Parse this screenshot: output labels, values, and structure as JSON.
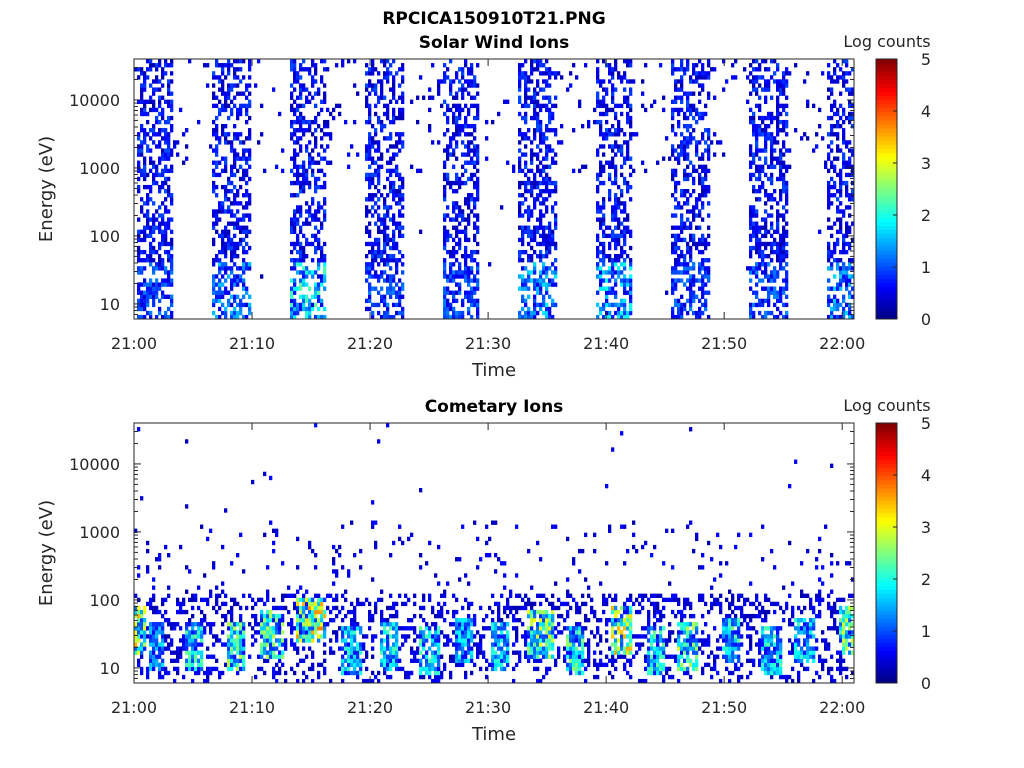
{
  "figure": {
    "title": "RPCICA150910T21.PNG"
  },
  "chart_data": [
    {
      "type": "heatmap",
      "title": "Solar Wind Ions",
      "xlabel": "Time",
      "ylabel": "Energy (eV)",
      "x_ticks": [
        "21:00",
        "21:10",
        "21:20",
        "21:30",
        "21:40",
        "21:50",
        "22:00"
      ],
      "x_range_minutes": [
        0,
        61
      ],
      "y_scale": "log",
      "y_ticks": [
        10,
        100,
        1000,
        10000
      ],
      "y_range": [
        6,
        40000
      ],
      "colorbar": {
        "label": "Log counts",
        "range": [
          0,
          5
        ],
        "ticks": [
          "0",
          "1",
          "2",
          "3",
          "4",
          "5"
        ],
        "colormap": "jet"
      },
      "bursts_minutes": [
        {
          "start": 0.2,
          "end": 3.4,
          "dense_above_eV": 150,
          "low_energy_peak": 0.9,
          "high_energy_peak": 0.8
        },
        {
          "start": 6.6,
          "end": 9.8,
          "dense_above_eV": 150,
          "low_energy_peak": 1.2,
          "high_energy_peak": 0.8
        },
        {
          "start": 13.1,
          "end": 16.3,
          "dense_above_eV": 150,
          "low_energy_peak": 2.0,
          "high_energy_peak": 0.8
        },
        {
          "start": 19.6,
          "end": 22.8,
          "dense_above_eV": 150,
          "low_energy_peak": 0.9,
          "high_energy_peak": 0.8
        },
        {
          "start": 26.1,
          "end": 29.2,
          "dense_above_eV": 150,
          "low_energy_peak": 0.9,
          "high_energy_peak": 0.8
        },
        {
          "start": 32.6,
          "end": 35.8,
          "dense_above_eV": 150,
          "low_energy_peak": 1.4,
          "high_energy_peak": 0.8
        },
        {
          "start": 39.1,
          "end": 42.3,
          "dense_above_eV": 150,
          "low_energy_peak": 1.6,
          "high_energy_peak": 0.8
        },
        {
          "start": 45.6,
          "end": 48.8,
          "dense_above_eV": 150,
          "low_energy_peak": 0.9,
          "high_energy_peak": 0.8
        },
        {
          "start": 52.1,
          "end": 55.3,
          "dense_above_eV": 150,
          "low_energy_peak": 0.9,
          "high_energy_peak": 0.8
        },
        {
          "start": 58.6,
          "end": 61.0,
          "dense_above_eV": 150,
          "low_energy_peak": 1.3,
          "high_energy_peak": 0.8
        }
      ]
    },
    {
      "type": "heatmap",
      "title": "Cometary Ions",
      "xlabel": "Time",
      "ylabel": "Energy (eV)",
      "x_ticks": [
        "21:00",
        "21:10",
        "21:20",
        "21:30",
        "21:40",
        "21:50",
        "22:00"
      ],
      "x_range_minutes": [
        0,
        61
      ],
      "y_scale": "log",
      "y_ticks": [
        10,
        100,
        1000,
        10000
      ],
      "y_range": [
        6,
        40000
      ],
      "colorbar": {
        "label": "Log counts",
        "range": [
          0,
          5
        ],
        "ticks": [
          "0",
          "1",
          "2",
          "3",
          "4",
          "5"
        ],
        "colormap": "jet"
      },
      "bursts_minutes": [
        {
          "start": 0.0,
          "end": 0.6,
          "peak_energy_eV": 35,
          "peak_log_counts": 3.0
        },
        {
          "start": 1.6,
          "end": 2.2,
          "peak_energy_eV": 20,
          "peak_log_counts": 1.2
        },
        {
          "start": 4.8,
          "end": 5.4,
          "peak_energy_eV": 20,
          "peak_log_counts": 1.8
        },
        {
          "start": 8.2,
          "end": 9.0,
          "peak_energy_eV": 20,
          "peak_log_counts": 2.2
        },
        {
          "start": 11.2,
          "end": 12.2,
          "peak_energy_eV": 30,
          "peak_log_counts": 2.2
        },
        {
          "start": 14.2,
          "end": 15.8,
          "peak_energy_eV": 50,
          "peak_log_counts": 3.2
        },
        {
          "start": 18.0,
          "end": 18.8,
          "peak_energy_eV": 18,
          "peak_log_counts": 1.6
        },
        {
          "start": 21.2,
          "end": 22.0,
          "peak_energy_eV": 20,
          "peak_log_counts": 1.7
        },
        {
          "start": 24.6,
          "end": 25.4,
          "peak_energy_eV": 18,
          "peak_log_counts": 1.9
        },
        {
          "start": 27.6,
          "end": 28.4,
          "peak_energy_eV": 25,
          "peak_log_counts": 1.4
        },
        {
          "start": 30.6,
          "end": 31.4,
          "peak_energy_eV": 20,
          "peak_log_counts": 1.5
        },
        {
          "start": 33.8,
          "end": 35.2,
          "peak_energy_eV": 30,
          "peak_log_counts": 2.6
        },
        {
          "start": 37.0,
          "end": 37.8,
          "peak_energy_eV": 18,
          "peak_log_counts": 2.0
        },
        {
          "start": 40.8,
          "end": 41.8,
          "peak_energy_eV": 35,
          "peak_log_counts": 3.0
        },
        {
          "start": 43.8,
          "end": 44.6,
          "peak_energy_eV": 18,
          "peak_log_counts": 1.8
        },
        {
          "start": 46.4,
          "end": 47.4,
          "peak_energy_eV": 20,
          "peak_log_counts": 2.4
        },
        {
          "start": 50.2,
          "end": 51.0,
          "peak_energy_eV": 25,
          "peak_log_counts": 1.9
        },
        {
          "start": 53.6,
          "end": 54.4,
          "peak_energy_eV": 18,
          "peak_log_counts": 1.8
        },
        {
          "start": 56.4,
          "end": 57.2,
          "peak_energy_eV": 25,
          "peak_log_counts": 1.6
        },
        {
          "start": 60.2,
          "end": 61.0,
          "peak_energy_eV": 35,
          "peak_log_counts": 2.4
        }
      ]
    }
  ]
}
